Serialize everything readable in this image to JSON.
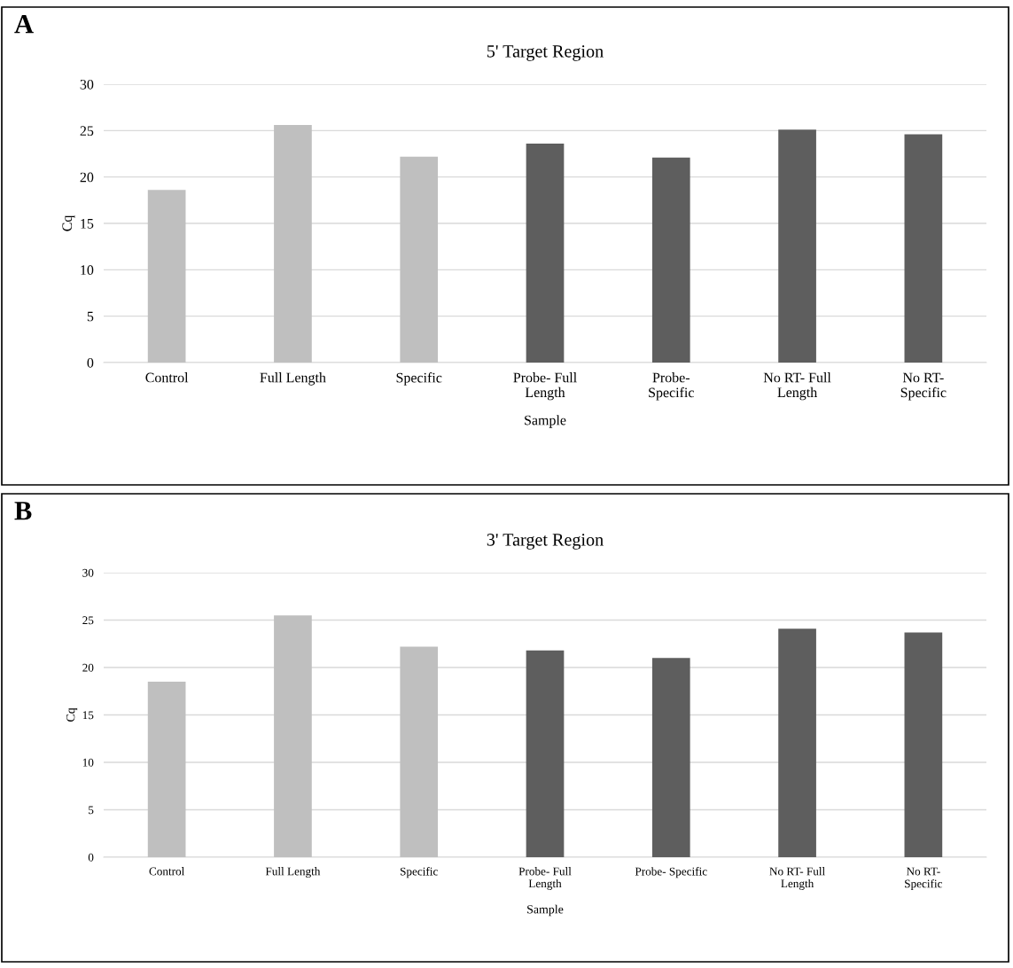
{
  "chart_data": [
    {
      "type": "bar",
      "title": "5' Target Region",
      "xlabel": "Sample",
      "ylabel": "Cq",
      "annotations": [
        "A"
      ],
      "categories": [
        "Control",
        "Full Length",
        "Specific",
        "Probe- Full\nLength",
        "Probe-\nSpecific",
        "No RT- Full\nLength",
        "No RT-\nSpecific"
      ],
      "values": [
        18.6,
        25.6,
        22.2,
        23.6,
        22.1,
        25.1,
        24.6
      ],
      "colors": [
        "#bfbfbf",
        "#bfbfbf",
        "#bfbfbf",
        "#5e5e5e",
        "#5e5e5e",
        "#5e5e5e",
        "#5e5e5e"
      ],
      "ylim": [
        0,
        30
      ],
      "yticks": [
        0,
        5,
        10,
        15,
        20,
        25,
        30
      ],
      "grid": "y"
    },
    {
      "type": "bar",
      "title": "3' Target Region",
      "xlabel": "Sample",
      "ylabel": "Cq",
      "annotations": [
        "B"
      ],
      "categories": [
        "Control",
        "Full Length",
        "Specific",
        "Probe- Full\nLength",
        "Probe- Specific",
        "No RT- Full\nLength",
        "No RT-\nSpecific"
      ],
      "values": [
        18.5,
        25.5,
        22.2,
        21.8,
        21.0,
        24.1,
        23.7
      ],
      "colors": [
        "#bfbfbf",
        "#bfbfbf",
        "#bfbfbf",
        "#5e5e5e",
        "#5e5e5e",
        "#5e5e5e",
        "#5e5e5e"
      ],
      "ylim": [
        0,
        30
      ],
      "yticks": [
        0,
        5,
        10,
        15,
        20,
        25,
        30
      ],
      "grid": "y"
    }
  ]
}
